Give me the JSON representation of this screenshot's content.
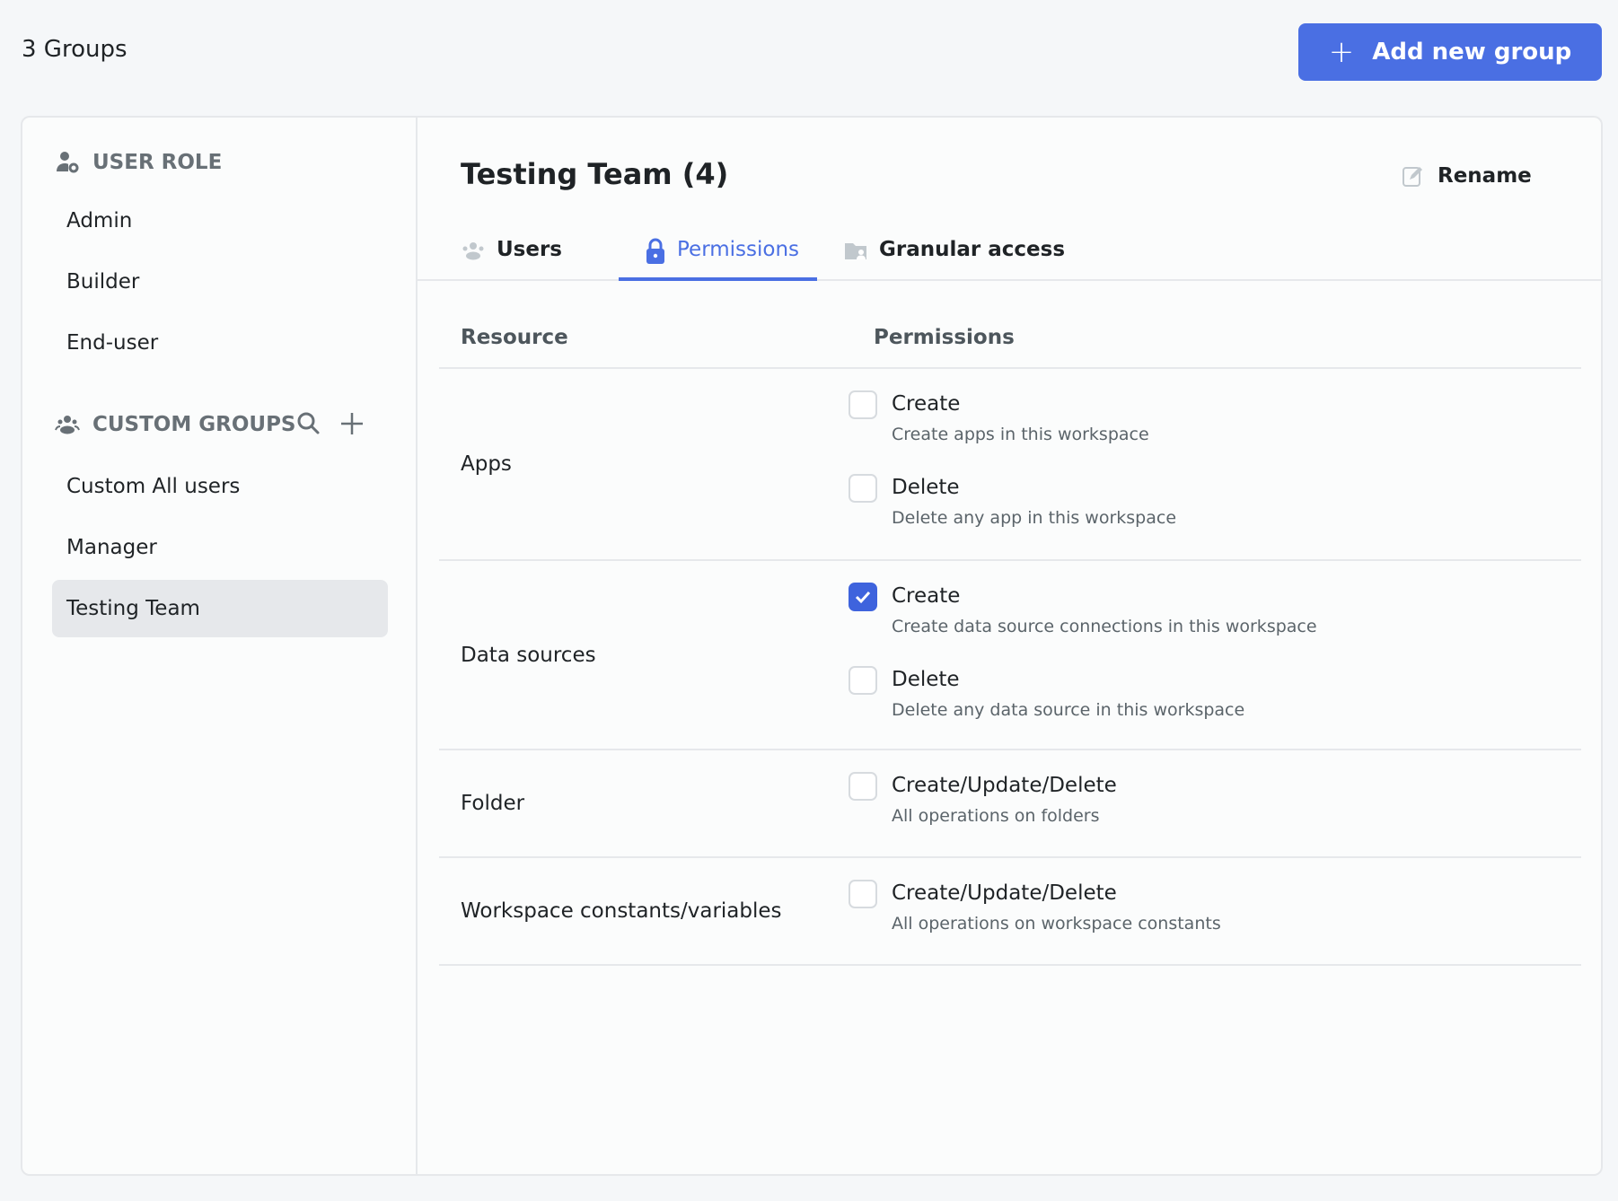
{
  "header": {
    "count_label": "3 Groups",
    "add_button": "Add new group"
  },
  "sidebar": {
    "user_role_title": "USER ROLE",
    "user_roles": [
      {
        "label": "Admin"
      },
      {
        "label": "Builder"
      },
      {
        "label": "End-user"
      }
    ],
    "custom_groups_title": "CUSTOM GROUPS",
    "custom_groups": [
      {
        "label": "Custom All users"
      },
      {
        "label": "Manager"
      },
      {
        "label": "Testing Team",
        "selected": true
      }
    ]
  },
  "main": {
    "title": "Testing Team (4)",
    "rename_label": "Rename",
    "tabs": [
      {
        "label": "Users"
      },
      {
        "label": "Permissions",
        "active": true
      },
      {
        "label": "Granular access"
      }
    ],
    "table": {
      "headers": {
        "resource": "Resource",
        "permissions": "Permissions"
      },
      "rows": [
        {
          "resource": "Apps",
          "permissions": [
            {
              "label": "Create",
              "desc": "Create apps in this workspace",
              "checked": false
            },
            {
              "label": "Delete",
              "desc": "Delete any app in this workspace",
              "checked": false
            }
          ]
        },
        {
          "resource": "Data sources",
          "permissions": [
            {
              "label": "Create",
              "desc": "Create data source connections in this workspace",
              "checked": true
            },
            {
              "label": "Delete",
              "desc": "Delete any data source in this workspace",
              "checked": false
            }
          ]
        },
        {
          "resource": "Folder",
          "permissions": [
            {
              "label": "Create/Update/Delete",
              "desc": "All operations on folders",
              "checked": false
            }
          ]
        },
        {
          "resource": "Workspace constants/variables",
          "permissions": [
            {
              "label": "Create/Update/Delete",
              "desc": "All operations on workspace constants",
              "checked": false
            }
          ]
        }
      ]
    }
  },
  "colors": {
    "accent": "#4a6fe3",
    "checkbox_checked": "#3e63dd",
    "selected_bg": "#e6e8eb"
  }
}
